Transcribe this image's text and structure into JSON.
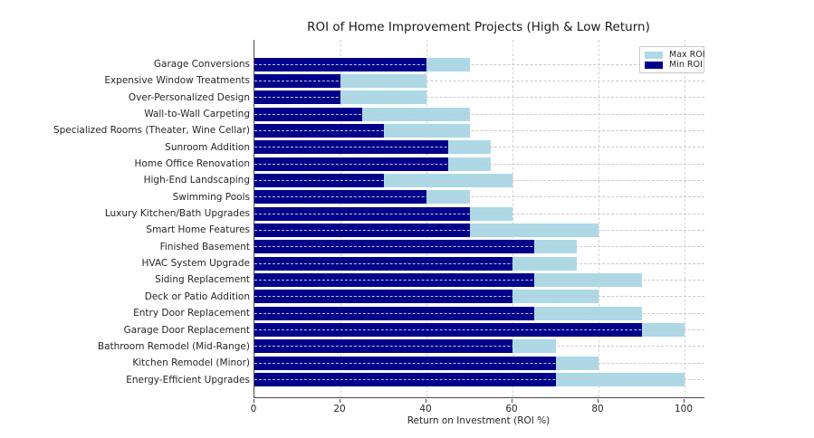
{
  "chart_data": {
    "type": "bar",
    "orientation": "horizontal",
    "title": "ROI of Home Improvement Projects (High & Low Return)",
    "xlabel": "Return on Investment (ROI %)",
    "ylabel": "",
    "categories": [
      "Garage Conversions",
      "Expensive Window Treatments",
      "Over-Personalized Design",
      "Wall-to-Wall Carpeting",
      "Specialized Rooms (Theater, Wine Cellar)",
      "Sunroom Addition",
      "Home Office Renovation",
      "High-End Landscaping",
      "Swimming Pools",
      "Luxury Kitchen/Bath Upgrades",
      "Smart Home Features",
      "Finished Basement",
      "HVAC System Upgrade",
      "Siding Replacement",
      "Deck or Patio Addition",
      "Entry Door Replacement",
      "Garage Door Replacement",
      "Bathroom Remodel (Mid-Range)",
      "Kitchen Remodel (Minor)",
      "Energy-Efficient Upgrades"
    ],
    "series": [
      {
        "name": "Max ROI",
        "color": "#ADD8E6",
        "values": [
          50,
          40,
          40,
          50,
          50,
          55,
          55,
          60,
          50,
          60,
          80,
          75,
          75,
          90,
          80,
          90,
          100,
          70,
          80,
          100
        ]
      },
      {
        "name": "Min ROI",
        "color": "#00008B",
        "values": [
          40,
          20,
          20,
          25,
          30,
          45,
          45,
          30,
          40,
          50,
          50,
          65,
          60,
          65,
          60,
          65,
          90,
          60,
          70,
          70
        ]
      }
    ],
    "x_ticks": [
      0,
      20,
      40,
      60,
      80,
      100
    ],
    "xlim": [
      0,
      104.6
    ],
    "grid": "dashed",
    "legend_position": "upper right"
  }
}
